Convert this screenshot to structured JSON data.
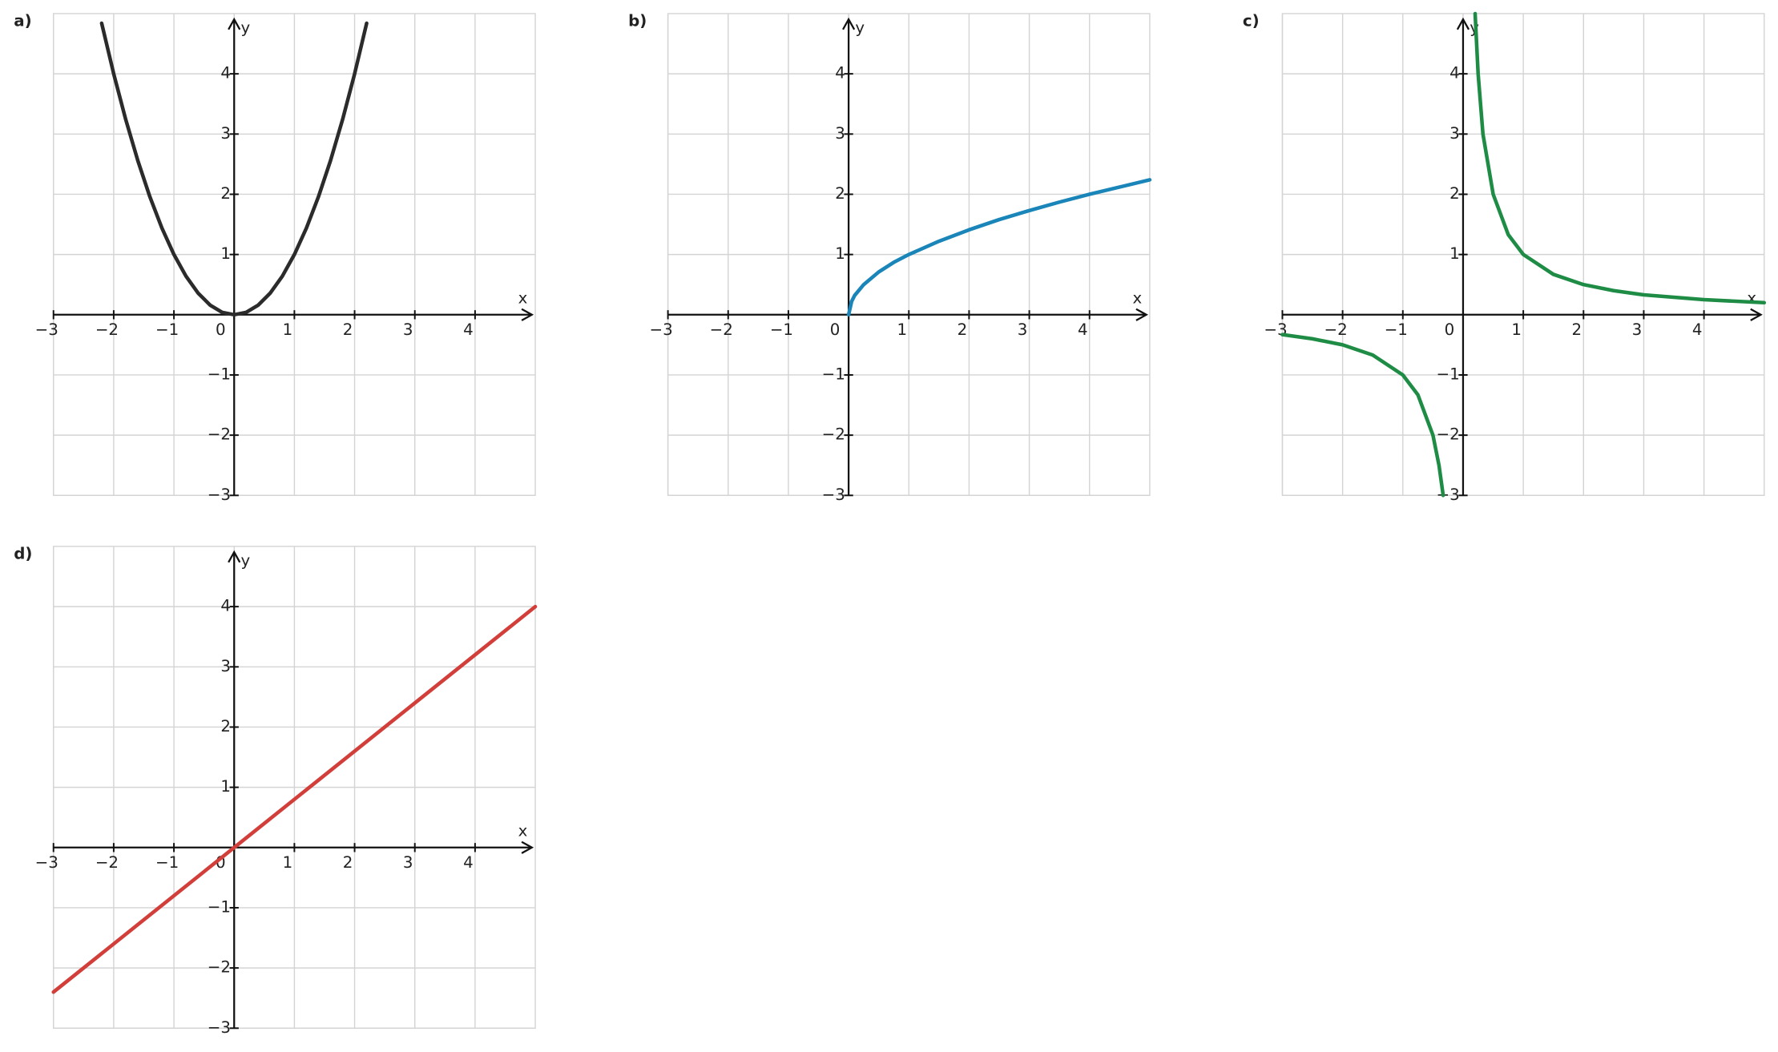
{
  "chart_data": [
    {
      "type": "line",
      "label": "a)",
      "xlabel": "x",
      "ylabel": "y",
      "color": "#2b2b2b",
      "grid": true,
      "xlim": [
        -3,
        5
      ],
      "ylim": [
        -3,
        5
      ],
      "xticks": [
        {
          "value": -3,
          "label": "−3"
        },
        {
          "value": -2,
          "label": "−2"
        },
        {
          "value": -1,
          "label": "−1"
        },
        0,
        1,
        2,
        3,
        4
      ],
      "yticks": [
        {
          "value": -3,
          "label": "−3"
        },
        {
          "value": -2,
          "label": "−2"
        },
        {
          "value": -1,
          "label": "−1"
        },
        1,
        2,
        3,
        4
      ],
      "x": [
        -2.2,
        -2,
        -1.8,
        -1.6,
        -1.4,
        -1.2,
        -1,
        -0.8,
        -0.6,
        -0.4,
        -0.2,
        0,
        0.2,
        0.4,
        0.6,
        0.8,
        1,
        1.2,
        1.4,
        1.6,
        1.8,
        2,
        2.2
      ],
      "values": [
        4.84,
        4,
        3.24,
        2.56,
        1.96,
        1.44,
        1,
        0.64,
        0.36,
        0.16,
        0.04,
        0,
        0.04,
        0.16,
        0.36,
        0.64,
        1,
        1.44,
        1.96,
        2.56,
        3.24,
        4,
        4.84
      ]
    },
    {
      "type": "line",
      "label": "b)",
      "xlabel": "x",
      "ylabel": "y",
      "color": "#1a85b8",
      "grid": true,
      "xlim": [
        -3,
        5
      ],
      "ylim": [
        -3,
        5
      ],
      "xticks": [
        {
          "value": -3,
          "label": "−3"
        },
        {
          "value": -2,
          "label": "−2"
        },
        {
          "value": -1,
          "label": "−1"
        },
        0,
        1,
        2,
        3,
        4
      ],
      "yticks": [
        {
          "value": -3,
          "label": "−3"
        },
        {
          "value": -2,
          "label": "−2"
        },
        {
          "value": -1,
          "label": "−1"
        },
        1,
        2,
        3,
        4
      ],
      "x": [
        0,
        0.05,
        0.1,
        0.25,
        0.5,
        0.75,
        1,
        1.5,
        2,
        2.5,
        3,
        3.5,
        4,
        4.5,
        5
      ],
      "values": [
        0,
        0.22,
        0.32,
        0.5,
        0.71,
        0.87,
        1,
        1.22,
        1.41,
        1.58,
        1.73,
        1.87,
        2,
        2.12,
        2.24
      ]
    },
    {
      "type": "line",
      "label": "c)",
      "xlabel": "x",
      "ylabel": "y",
      "color": "#1e8c45",
      "grid": true,
      "xlim": [
        -3,
        5
      ],
      "ylim": [
        -3,
        5
      ],
      "xticks": [
        {
          "value": -3,
          "label": "−3"
        },
        {
          "value": -2,
          "label": "−2"
        },
        {
          "value": -1,
          "label": "−1"
        },
        0,
        1,
        2,
        3,
        4
      ],
      "yticks": [
        {
          "value": -3,
          "label": "−3"
        },
        {
          "value": -2,
          "label": "−2"
        },
        {
          "value": -1,
          "label": "−1"
        },
        1,
        2,
        3,
        4
      ],
      "x": [
        -3,
        -2.5,
        -2,
        -1.5,
        -1,
        -0.75,
        -0.5,
        -0.4,
        -0.33,
        0,
        0.2,
        0.25,
        0.33,
        0.5,
        0.75,
        1,
        1.5,
        2,
        2.5,
        3,
        4,
        5
      ],
      "values": [
        -0.33,
        -0.4,
        -0.5,
        -0.67,
        -1,
        -1.33,
        -2,
        -2.5,
        -3,
        null,
        5,
        4,
        3,
        2,
        1.33,
        1,
        0.67,
        0.5,
        0.4,
        0.33,
        0.25,
        0.2
      ]
    },
    {
      "type": "line",
      "label": "d)",
      "xlabel": "x",
      "ylabel": "y",
      "color": "#d23f3a",
      "grid": true,
      "xlim": [
        -3,
        5
      ],
      "ylim": [
        -3,
        5
      ],
      "xticks": [
        {
          "value": -3,
          "label": "−3"
        },
        {
          "value": -2,
          "label": "−2"
        },
        {
          "value": -1,
          "label": "−1"
        },
        0,
        1,
        2,
        3,
        4
      ],
      "yticks": [
        {
          "value": -3,
          "label": "−3"
        },
        {
          "value": -2,
          "label": "−2"
        },
        {
          "value": -1,
          "label": "−1"
        },
        1,
        2,
        3,
        4
      ],
      "x": [
        -3,
        0,
        5
      ],
      "values": [
        -2.4,
        0,
        4
      ]
    }
  ]
}
